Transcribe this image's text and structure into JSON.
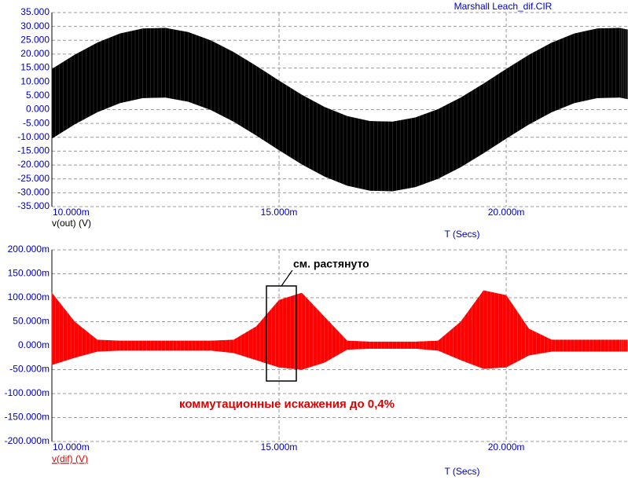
{
  "chart_data": [
    {
      "type": "band",
      "title": "Marshall Leach_dif.CIR",
      "ylabel": "v(out) (V)",
      "xlabel": "T (Secs)",
      "color": "#000000",
      "label_color": "#0000c0",
      "x": [
        0.01,
        0.0105,
        0.011,
        0.0115,
        0.012,
        0.0125,
        0.013,
        0.0135,
        0.014,
        0.0145,
        0.015,
        0.0155,
        0.016,
        0.0165,
        0.017,
        0.0175,
        0.018,
        0.0185,
        0.019,
        0.0195,
        0.02,
        0.0205,
        0.021,
        0.0215,
        0.022,
        0.0225,
        0.02268
      ],
      "high": [
        14.6,
        19.7,
        24.1,
        27.4,
        29.2,
        29.4,
        27.9,
        24.9,
        20.7,
        15.7,
        10.4,
        5.3,
        0.9,
        -2.4,
        -4.2,
        -4.4,
        -2.9,
        0.1,
        4.3,
        9.3,
        14.6,
        19.7,
        24.1,
        27.4,
        29.2,
        29.4,
        28.8
      ],
      "low": [
        -10.4,
        -5.3,
        -0.9,
        2.4,
        4.2,
        4.4,
        2.9,
        -0.1,
        -4.3,
        -9.3,
        -14.6,
        -19.7,
        -24.1,
        -27.4,
        -29.2,
        -29.4,
        -27.9,
        -24.9,
        -20.7,
        -15.7,
        -10.4,
        -5.3,
        -0.9,
        2.4,
        4.2,
        4.4,
        3.8
      ],
      "xlim": [
        0.01,
        0.02268
      ],
      "xticks": [
        {
          "value": 0.01,
          "label": "10.000m"
        },
        {
          "value": 0.015,
          "label": "15.000m"
        },
        {
          "value": 0.02,
          "label": "20.000m"
        }
      ],
      "ylim": [
        -35,
        35
      ],
      "yticks": [
        {
          "value": 35,
          "label": "35.000"
        },
        {
          "value": 30,
          "label": "30.000"
        },
        {
          "value": 25,
          "label": "25.000"
        },
        {
          "value": 20,
          "label": "20.000"
        },
        {
          "value": 15,
          "label": "15.000"
        },
        {
          "value": 10,
          "label": "10.000"
        },
        {
          "value": 5,
          "label": "5.000"
        },
        {
          "value": 0,
          "label": "0.000"
        },
        {
          "value": -5,
          "label": "-5.000"
        },
        {
          "value": -10,
          "label": "-10.000"
        },
        {
          "value": -15,
          "label": "-15.000"
        },
        {
          "value": -20,
          "label": "-20.000"
        },
        {
          "value": -25,
          "label": "-25.000"
        },
        {
          "value": -30,
          "label": "-30.000"
        },
        {
          "value": -35,
          "label": "-35.000"
        }
      ],
      "grid": true
    },
    {
      "type": "band",
      "ylabel": "v(dif) (V)",
      "xlabel": "T (Secs)",
      "color": "#ff0000",
      "label_color": "#0000c0",
      "annotations": [
        "см. растянуто",
        "коммутационные искажения до 0,4%"
      ],
      "x": [
        0.01,
        0.0105,
        0.011,
        0.0115,
        0.012,
        0.0125,
        0.013,
        0.0135,
        0.014,
        0.0145,
        0.015,
        0.0155,
        0.016,
        0.0165,
        0.017,
        0.0175,
        0.018,
        0.0185,
        0.019,
        0.0195,
        0.02,
        0.0205,
        0.021,
        0.0215,
        0.022,
        0.0225,
        0.02268
      ],
      "high": [
        0.11,
        0.05,
        0.012,
        0.01,
        0.01,
        0.01,
        0.01,
        0.01,
        0.012,
        0.04,
        0.095,
        0.11,
        0.06,
        0.01,
        0.008,
        0.008,
        0.008,
        0.01,
        0.05,
        0.115,
        0.105,
        0.035,
        0.012,
        0.012,
        0.012,
        0.012,
        0.012
      ],
      "low": [
        -0.04,
        -0.025,
        -0.012,
        -0.01,
        -0.01,
        -0.01,
        -0.01,
        -0.01,
        -0.015,
        -0.03,
        -0.045,
        -0.05,
        -0.035,
        -0.008,
        -0.006,
        -0.006,
        -0.006,
        -0.01,
        -0.03,
        -0.048,
        -0.045,
        -0.02,
        -0.012,
        -0.012,
        -0.012,
        -0.012,
        -0.012
      ],
      "xlim": [
        0.01,
        0.02268
      ],
      "xticks": [
        {
          "value": 0.01,
          "label": "10.000m"
        },
        {
          "value": 0.015,
          "label": "15.000m"
        },
        {
          "value": 0.02,
          "label": "20.000m"
        }
      ],
      "ylim": [
        -0.2,
        0.2
      ],
      "yticks": [
        {
          "value": 0.2,
          "label": "200.000m"
        },
        {
          "value": 0.15,
          "label": "150.000m"
        },
        {
          "value": 0.1,
          "label": "100.000m"
        },
        {
          "value": 0.05,
          "label": "50.000m"
        },
        {
          "value": 0,
          "label": "0.000m"
        },
        {
          "value": -0.05,
          "label": "-50.000m"
        },
        {
          "value": -0.1,
          "label": "-100.000m"
        },
        {
          "value": -0.15,
          "label": "-150.000m"
        },
        {
          "value": -0.2,
          "label": "-200.000m"
        }
      ],
      "grid": true
    }
  ]
}
